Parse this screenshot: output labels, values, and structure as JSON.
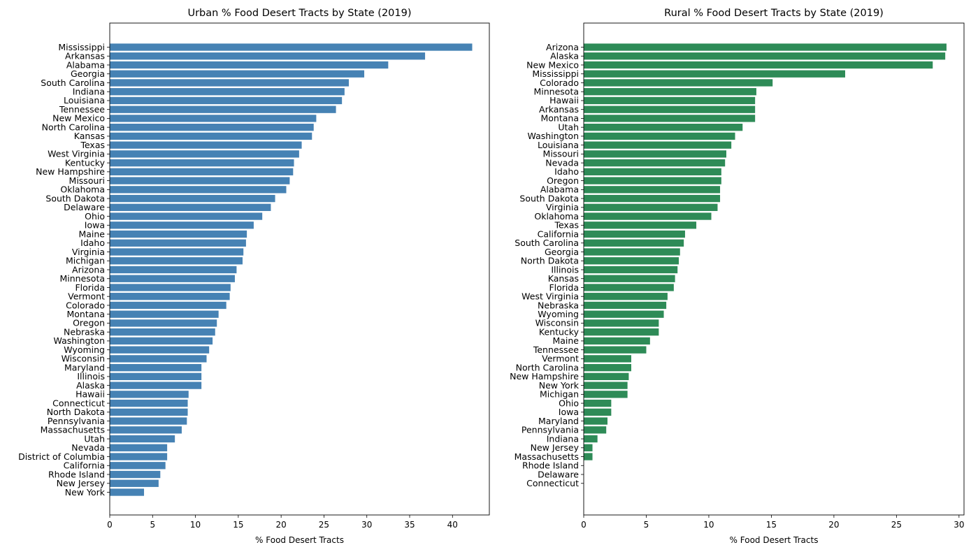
{
  "chart_data": [
    {
      "type": "bar",
      "orientation": "horizontal",
      "title": "Urban % Food Desert Tracts by State (2019)",
      "xlabel": "% Food Desert Tracts",
      "ylabel": "",
      "xlim": [
        0,
        44.3
      ],
      "xticks": [
        0,
        5,
        10,
        15,
        20,
        25,
        30,
        35,
        40
      ],
      "color": "#4682b4",
      "grid": false,
      "categories": [
        "Mississippi",
        "Arkansas",
        "Alabama",
        "Georgia",
        "South Carolina",
        "Indiana",
        "Louisiana",
        "Tennessee",
        "New Mexico",
        "North Carolina",
        "Kansas",
        "Texas",
        "West Virginia",
        "Kentucky",
        "New Hampshire",
        "Missouri",
        "Oklahoma",
        "South Dakota",
        "Delaware",
        "Ohio",
        "Iowa",
        "Maine",
        "Idaho",
        "Virginia",
        "Michigan",
        "Arizona",
        "Minnesota",
        "Florida",
        "Vermont",
        "Colorado",
        "Montana",
        "Oregon",
        "Nebraska",
        "Washington",
        "Wyoming",
        "Wisconsin",
        "Maryland",
        "Illinois",
        "Alaska",
        "Hawaii",
        "Connecticut",
        "North Dakota",
        "Pennsylvania",
        "Massachusetts",
        "Utah",
        "Nevada",
        "District of Columbia",
        "California",
        "Rhode Island",
        "New Jersey",
        "New York"
      ],
      "values": [
        42.3,
        36.8,
        32.5,
        29.7,
        27.9,
        27.4,
        27.1,
        26.4,
        24.1,
        23.8,
        23.6,
        22.4,
        22.1,
        21.5,
        21.4,
        21.0,
        20.6,
        19.3,
        18.8,
        17.8,
        16.8,
        16.0,
        15.9,
        15.6,
        15.5,
        14.8,
        14.6,
        14.1,
        14.0,
        13.6,
        12.7,
        12.5,
        12.3,
        12.0,
        11.6,
        11.3,
        10.7,
        10.7,
        10.7,
        9.2,
        9.1,
        9.1,
        9.0,
        8.4,
        7.6,
        6.7,
        6.7,
        6.5,
        5.9,
        5.7,
        4.0
      ]
    },
    {
      "type": "bar",
      "orientation": "horizontal",
      "title": "Rural % Food Desert Tracts by State (2019)",
      "xlabel": "% Food Desert Tracts",
      "ylabel": "",
      "xlim": [
        0,
        30.4
      ],
      "xticks": [
        0,
        5,
        10,
        15,
        20,
        25,
        30
      ],
      "color": "#2e8b57",
      "grid": false,
      "categories": [
        "Arizona",
        "Alaska",
        "New Mexico",
        "Mississippi",
        "Colorado",
        "Minnesota",
        "Hawaii",
        "Arkansas",
        "Montana",
        "Utah",
        "Washington",
        "Louisiana",
        "Missouri",
        "Nevada",
        "Idaho",
        "Oregon",
        "Alabama",
        "South Dakota",
        "Virginia",
        "Oklahoma",
        "Texas",
        "California",
        "South Carolina",
        "Georgia",
        "North Dakota",
        "Illinois",
        "Kansas",
        "Florida",
        "West Virginia",
        "Nebraska",
        "Wyoming",
        "Wisconsin",
        "Kentucky",
        "Maine",
        "Tennessee",
        "Vermont",
        "North Carolina",
        "New Hampshire",
        "New York",
        "Michigan",
        "Ohio",
        "Iowa",
        "Maryland",
        "Pennsylvania",
        "Indiana",
        "New Jersey",
        "Massachusetts",
        "Rhode Island",
        "Delaware",
        "Connecticut"
      ],
      "values": [
        29.0,
        28.9,
        27.9,
        20.9,
        15.1,
        13.8,
        13.7,
        13.7,
        13.7,
        12.7,
        12.1,
        11.8,
        11.4,
        11.3,
        11.0,
        11.0,
        10.9,
        10.9,
        10.7,
        10.2,
        9.0,
        8.1,
        8.0,
        7.7,
        7.6,
        7.5,
        7.3,
        7.2,
        6.7,
        6.6,
        6.4,
        6.0,
        6.0,
        5.3,
        5.0,
        3.8,
        3.8,
        3.6,
        3.5,
        3.5,
        2.2,
        2.2,
        1.9,
        1.8,
        1.1,
        0.7,
        0.7,
        0.0,
        0.0,
        0.0
      ]
    }
  ]
}
